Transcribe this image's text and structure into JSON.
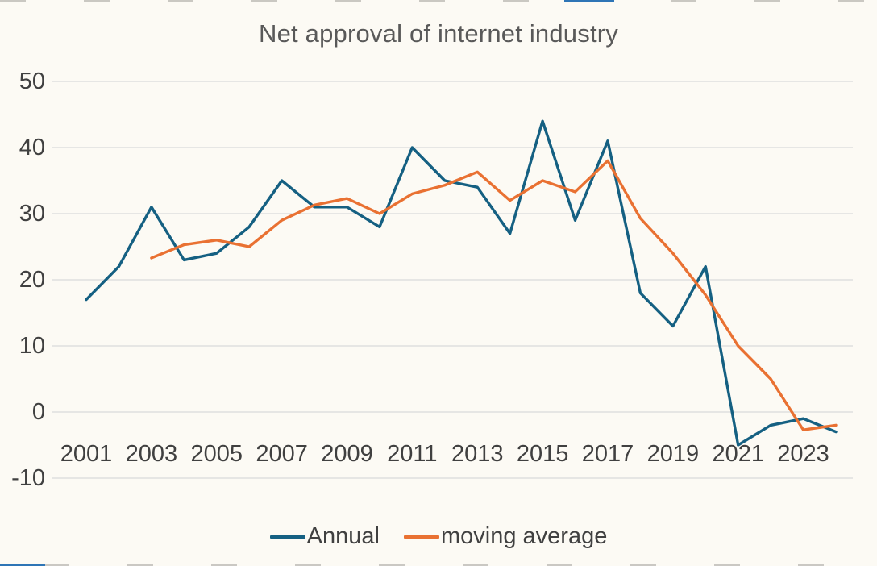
{
  "chart_data": {
    "type": "line",
    "title": "Net approval of internet industry",
    "xlabel": "",
    "ylabel": "",
    "ylim": [
      -10,
      50
    ],
    "yticks": [
      50,
      40,
      30,
      20,
      10,
      0,
      -10
    ],
    "xticks": [
      2001,
      2003,
      2005,
      2007,
      2009,
      2011,
      2013,
      2015,
      2017,
      2019,
      2021,
      2023
    ],
    "grid": true,
    "legend_position": "bottom",
    "colors": {
      "gridline": "#d9d9d9",
      "axis_text": "#404040",
      "title_text": "#595959",
      "background": "#fcfaf4"
    },
    "series": [
      {
        "name": "Annual",
        "color": "#156082",
        "x": [
          2001,
          2002,
          2003,
          2004,
          2005,
          2006,
          2007,
          2008,
          2009,
          2010,
          2011,
          2012,
          2013,
          2014,
          2015,
          2016,
          2017,
          2018,
          2019,
          2020,
          2021,
          2022,
          2023,
          2024
        ],
        "values": [
          17,
          22,
          31,
          23,
          24,
          28,
          35,
          31,
          31,
          28,
          40,
          35,
          34,
          27,
          44,
          29,
          41,
          18,
          13,
          22,
          -5,
          -2,
          -1,
          -3
        ]
      },
      {
        "name": "moving average",
        "color": "#e97132",
        "x": [
          2003,
          2004,
          2005,
          2006,
          2007,
          2008,
          2009,
          2010,
          2011,
          2012,
          2013,
          2014,
          2015,
          2016,
          2017,
          2018,
          2019,
          2020,
          2021,
          2022,
          2023,
          2024
        ],
        "values": [
          23.3,
          25.3,
          26,
          25,
          29,
          31.3,
          32.3,
          30,
          33,
          34.3,
          36.3,
          32,
          35,
          33.3,
          38,
          29.3,
          24,
          17.7,
          10,
          5,
          -2.7,
          -2
        ]
      }
    ]
  }
}
